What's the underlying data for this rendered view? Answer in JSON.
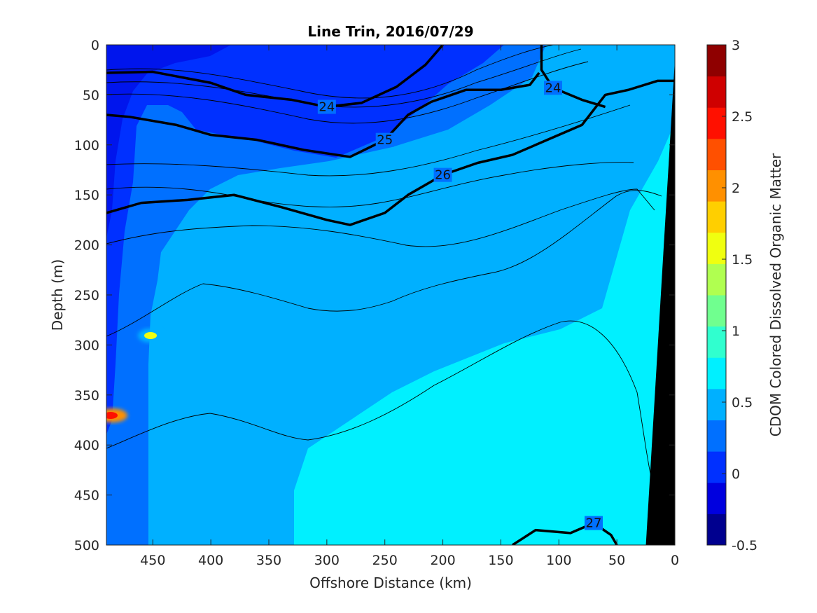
{
  "chart_data": {
    "type": "heatmap",
    "title": "Line Trin, 2016/07/29",
    "xlabel": "Offshore Distance (km)",
    "ylabel": "Depth (m)",
    "xlim": [
      490,
      0
    ],
    "ylim": [
      0,
      500
    ],
    "x_reversed": true,
    "y_reversed": true,
    "x_ticks": [
      "450",
      "400",
      "350",
      "300",
      "250",
      "200",
      "150",
      "100",
      "50",
      "0"
    ],
    "x_tick_values": [
      450,
      400,
      350,
      300,
      250,
      200,
      150,
      100,
      50,
      0
    ],
    "y_ticks": [
      "0",
      "50",
      "100",
      "150",
      "200",
      "250",
      "300",
      "350",
      "400",
      "450",
      "500"
    ],
    "y_tick_values": [
      0,
      50,
      100,
      150,
      200,
      250,
      300,
      350,
      400,
      450,
      500
    ],
    "colorbar": {
      "label": "CDOM Colored Dissolved Organic Matter",
      "range": [
        -0.5,
        3
      ],
      "ticks": [
        "3",
        "2.5",
        "2",
        "1.5",
        "1",
        "0.5",
        "0",
        "-0.5"
      ],
      "tick_values": [
        3,
        2.5,
        2,
        1.5,
        1,
        0.5,
        0,
        -0.5
      ],
      "colors": [
        "#00008f",
        "#0000df",
        "#0030ff",
        "#0070ff",
        "#00b0ff",
        "#00f0ff",
        "#30ffcf",
        "#70ff8f",
        "#b0ff50",
        "#f0ff10",
        "#ffcf00",
        "#ff9000",
        "#ff5000",
        "#ff1000",
        "#cf0000",
        "#8f0000"
      ]
    },
    "field_regions": [
      {
        "level": "0.0 to 0.25",
        "color": "#0030ff",
        "desc": "near-surface offshore band, 0-100 m deep, 490-200 km"
      },
      {
        "level": "0.25 to 0.5",
        "color": "#0070ff",
        "desc": "offshore column 490-380 km, mid-depth layer 50-200 m"
      },
      {
        "level": "0.5 to 0.75",
        "color": "#00b0ff",
        "desc": "mid-depth band 150-400 m"
      },
      {
        "level": "0.75 to 1.0",
        "color": "#00f0ff",
        "desc": "deep nearshore water below ~300 m, inshore of 300 km"
      }
    ],
    "hotspots": [
      {
        "x": 450,
        "y": 292,
        "value": 2.0
      },
      {
        "x": 485,
        "y": 370,
        "value": 2.6
      }
    ],
    "density_contours": [
      {
        "label": "24",
        "points": [
          [
            490,
            28
          ],
          [
            450,
            27
          ],
          [
            400,
            38
          ],
          [
            370,
            50
          ],
          [
            330,
            55
          ],
          [
            300,
            62
          ],
          [
            270,
            58
          ],
          [
            240,
            42
          ],
          [
            215,
            20
          ],
          [
            200,
            0
          ]
        ]
      },
      {
        "label": "24",
        "points": [
          [
            115,
            0
          ],
          [
            115,
            25
          ],
          [
            105,
            43
          ],
          [
            80,
            55
          ],
          [
            60,
            62
          ]
        ]
      },
      {
        "label": "25",
        "points": [
          [
            490,
            70
          ],
          [
            470,
            72
          ],
          [
            430,
            80
          ],
          [
            400,
            90
          ],
          [
            360,
            95
          ],
          [
            320,
            105
          ],
          [
            280,
            112
          ],
          [
            250,
            95
          ],
          [
            230,
            70
          ],
          [
            210,
            57
          ],
          [
            180,
            45
          ],
          [
            150,
            45
          ],
          [
            125,
            40
          ],
          [
            117,
            28
          ]
        ]
      },
      {
        "label": "26",
        "points": [
          [
            490,
            168
          ],
          [
            460,
            158
          ],
          [
            420,
            155
          ],
          [
            380,
            150
          ],
          [
            340,
            162
          ],
          [
            300,
            175
          ],
          [
            280,
            180
          ],
          [
            250,
            168
          ],
          [
            230,
            150
          ],
          [
            200,
            130
          ],
          [
            170,
            118
          ],
          [
            140,
            110
          ],
          [
            110,
            95
          ],
          [
            80,
            80
          ],
          [
            60,
            50
          ],
          [
            40,
            45
          ],
          [
            15,
            36
          ],
          [
            0,
            36
          ]
        ]
      },
      {
        "label": "27",
        "points": [
          [
            140,
            500
          ],
          [
            120,
            485
          ],
          [
            90,
            488
          ],
          [
            70,
            478
          ],
          [
            55,
            490
          ],
          [
            50,
            500
          ]
        ]
      }
    ],
    "seafloor": {
      "color": "#000000",
      "points": [
        [
          0,
          15
        ],
        [
          0,
          500
        ],
        [
          25,
          500
        ]
      ]
    }
  }
}
